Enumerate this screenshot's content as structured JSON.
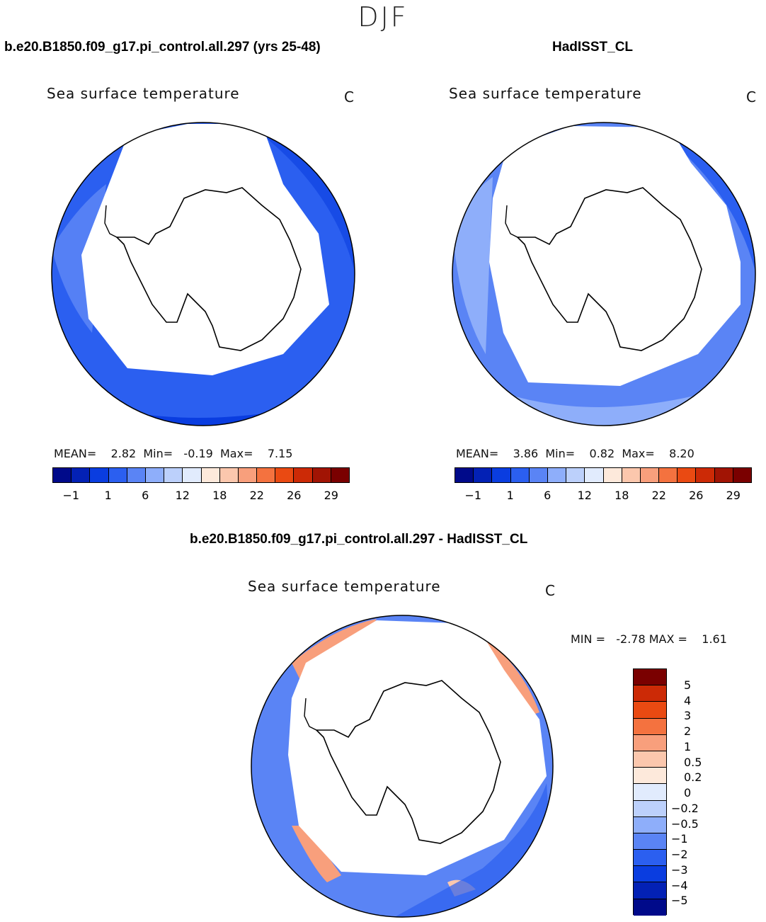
{
  "season": "DJF",
  "left_panel": {
    "case_title": "b.e20.B1850.f09_g17.pi_control.all.297 (yrs 25-48)",
    "title": "Sea surface temperature",
    "units": "C",
    "stats": "MEAN=    2.82  Min=   -0.19  Max=    7.15"
  },
  "right_panel": {
    "case_title": "HadISST_CL",
    "title": "Sea surface temperature",
    "units": "C",
    "stats": "MEAN=    3.86  Min=    0.82  Max=    8.20"
  },
  "diff_panel": {
    "case_title": "b.e20.B1850.f09_g17.pi_control.all.297 - HadISST_CL",
    "title": "Sea surface temperature",
    "units": "C",
    "stats": "MIN =   -2.78 MAX =    1.61"
  },
  "colors": {
    "abs_scale": [
      "#000a8a",
      "#0321b5",
      "#0a3de0",
      "#2b5ff0",
      "#5a84f5",
      "#8eaefa",
      "#bcd0fb",
      "#e1ebfd",
      "#fde9db",
      "#fbc7ad",
      "#f89f7c",
      "#f4723f",
      "#ea4a12",
      "#cc2a06",
      "#a11404",
      "#7a0000"
    ],
    "diff_scale": [
      "#000a8a",
      "#0321b5",
      "#0a3de0",
      "#2b5ff0",
      "#5a84f5",
      "#8eaefa",
      "#bcd0fb",
      "#e1ebfd",
      "#fde9db",
      "#fbc7ad",
      "#f89f7c",
      "#f4723f",
      "#ea4a12",
      "#cc2a06",
      "#7a0000"
    ]
  },
  "chart_data": [
    {
      "type": "heatmap",
      "name": "model_sst",
      "title": "Sea surface temperature",
      "units": "C",
      "projection": "south-polar-stereographic",
      "mean": 2.82,
      "min": -0.19,
      "max": 7.15,
      "colorbar_ticks": [
        "-1",
        "1",
        "6",
        "12",
        "18",
        "22",
        "26",
        "29"
      ],
      "colorbar_levels": [
        -1.8,
        -1,
        0,
        1,
        3,
        6,
        9,
        12,
        15,
        18,
        20,
        22,
        24,
        26,
        28,
        29
      ]
    },
    {
      "type": "heatmap",
      "name": "obs_sst",
      "title": "Sea surface temperature",
      "units": "C",
      "projection": "south-polar-stereographic",
      "mean": 3.86,
      "min": 0.82,
      "max": 8.2,
      "colorbar_ticks": [
        "-1",
        "1",
        "6",
        "12",
        "18",
        "22",
        "26",
        "29"
      ],
      "colorbar_levels": [
        -1.8,
        -1,
        0,
        1,
        3,
        6,
        9,
        12,
        15,
        18,
        20,
        22,
        24,
        26,
        28,
        29
      ]
    },
    {
      "type": "heatmap",
      "name": "difference",
      "title": "Sea surface temperature",
      "units": "C",
      "projection": "south-polar-stereographic",
      "min": -2.78,
      "max": 1.61,
      "colorbar_ticks": [
        "5",
        "4",
        "3",
        "2",
        "1",
        "0.5",
        "0.2",
        "0",
        "-0.2",
        "-0.5",
        "-1",
        "-2",
        "-3",
        "-4",
        "-5"
      ]
    }
  ]
}
